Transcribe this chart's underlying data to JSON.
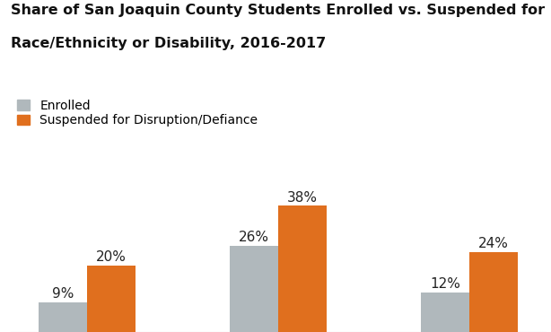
{
  "title_line1": "Share of San Joaquin County Students Enrolled vs. Suspended for Defiance by",
  "title_line2": "Race/Ethnicity or Disability, 2016-2017",
  "enrolled_values": [
    9,
    26,
    12
  ],
  "suspended_values": [
    20,
    38,
    24
  ],
  "enrolled_labels": [
    "9%",
    "26%",
    "12%"
  ],
  "suspended_labels": [
    "20%",
    "38%",
    "24%"
  ],
  "enrolled_color": "#b0b8bc",
  "suspended_color": "#e06f1e",
  "bar_width": 0.38,
  "ylim": [
    0,
    46
  ],
  "legend_enrolled": "Enrolled",
  "legend_suspended": "Suspended for Disruption/Defiance",
  "title_fontsize": 11.5,
  "label_fontsize": 11,
  "legend_fontsize": 10,
  "background_color": "#ffffff",
  "group_centers": [
    0.5,
    2.0,
    3.5
  ]
}
